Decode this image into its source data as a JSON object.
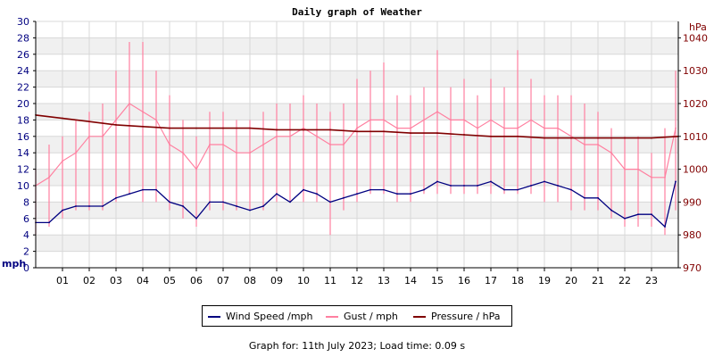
{
  "chart_data": {
    "type": "line",
    "title": "Daily graph of Weather",
    "left_axis": {
      "label": "mph",
      "ylim": [
        0,
        30
      ],
      "ticks": [
        0,
        2,
        4,
        6,
        8,
        10,
        12,
        14,
        16,
        18,
        20,
        22,
        24,
        26,
        28,
        30
      ]
    },
    "right_axis": {
      "label": "hPa",
      "ylim": [
        970,
        1045
      ],
      "ticks": [
        970,
        980,
        990,
        1000,
        1010,
        1020,
        1030,
        1040
      ]
    },
    "x_axis": {
      "xlim": [
        0,
        24
      ],
      "tick_labels": [
        "01",
        "02",
        "03",
        "04",
        "05",
        "06",
        "07",
        "08",
        "09",
        "10",
        "11",
        "12",
        "13",
        "14",
        "15",
        "16",
        "17",
        "18",
        "19",
        "20",
        "21",
        "22",
        "23"
      ]
    },
    "grid": true,
    "series": [
      {
        "name": "Wind Speed /mph",
        "axis": "left",
        "color": "#000080",
        "x": [
          0,
          0.5,
          1,
          1.5,
          2,
          2.5,
          3,
          3.5,
          4,
          4.5,
          5,
          5.5,
          6,
          6.5,
          7,
          7.5,
          8,
          8.5,
          9,
          9.5,
          10,
          10.5,
          11,
          11.5,
          12,
          12.5,
          13,
          13.5,
          14,
          14.5,
          15,
          15.5,
          16,
          16.5,
          17,
          17.5,
          18,
          18.5,
          19,
          19.5,
          20,
          20.5,
          21,
          21.5,
          22,
          22.5,
          23,
          23.5,
          23.9
        ],
        "values": [
          5.5,
          5.5,
          7,
          7.5,
          7.5,
          7.5,
          8.5,
          9,
          9.5,
          9.5,
          8,
          7.5,
          6,
          8,
          8,
          7.5,
          7,
          7.5,
          9,
          8,
          9.5,
          9,
          8,
          8.5,
          9,
          9.5,
          9.5,
          9,
          9,
          9.5,
          10.5,
          10,
          10,
          10,
          10.5,
          9.5,
          9.5,
          10,
          10.5,
          10,
          9.5,
          8.5,
          8.5,
          7,
          6,
          6.5,
          6.5,
          5,
          10.5
        ]
      },
      {
        "name": "Gust / mph",
        "axis": "left",
        "color": "#ff80a0",
        "x": [
          0,
          0.5,
          1,
          1.5,
          2,
          2.5,
          3,
          3.5,
          4,
          4.5,
          5,
          5.5,
          6,
          6.5,
          7,
          7.5,
          8,
          8.5,
          9,
          9.5,
          10,
          10.5,
          11,
          11.5,
          12,
          12.5,
          13,
          13.5,
          14,
          14.5,
          15,
          15.5,
          16,
          16.5,
          17,
          17.5,
          18,
          18.5,
          19,
          19.5,
          20,
          20.5,
          21,
          21.5,
          22,
          22.5,
          23,
          23.5,
          23.9
        ],
        "values": [
          10,
          11,
          13,
          14,
          16,
          16,
          18,
          20,
          19,
          18,
          15,
          14,
          12,
          15,
          15,
          14,
          14,
          15,
          16,
          16,
          17,
          16,
          15,
          15,
          17,
          18,
          18,
          17,
          17,
          18,
          19,
          18,
          18,
          17,
          18,
          17,
          17,
          18,
          17,
          17,
          16,
          15,
          15,
          14,
          12,
          12,
          11,
          11,
          17
        ],
        "min_values": [
          4,
          5,
          6,
          7,
          7,
          7,
          8,
          9,
          8,
          8,
          7,
          6,
          5,
          7,
          7,
          7,
          7,
          7,
          8,
          8,
          8,
          8,
          4,
          7,
          8,
          9,
          9,
          8,
          8,
          9,
          9,
          9,
          9,
          9,
          9,
          9,
          9,
          9,
          8,
          8,
          7,
          7,
          7,
          6,
          5,
          5,
          5,
          4,
          7
        ],
        "max_values": [
          12,
          15,
          16,
          18,
          19,
          20,
          24,
          27.5,
          27.5,
          24,
          21,
          18,
          16,
          19,
          19,
          18,
          18,
          19,
          20,
          20,
          21,
          20,
          19,
          20,
          23,
          24,
          25,
          21,
          21,
          22,
          26.5,
          22,
          23,
          21,
          23,
          22,
          26.5,
          23,
          21,
          21,
          21,
          20,
          19,
          17,
          16,
          16,
          14,
          17,
          24
        ]
      },
      {
        "name": "Pressure / hPa",
        "axis": "right",
        "color": "#800000",
        "x": [
          0,
          1,
          2,
          3,
          4,
          5,
          6,
          7,
          8,
          9,
          10,
          11,
          12,
          13,
          14,
          15,
          16,
          17,
          18,
          19,
          20,
          21,
          22,
          23,
          24
        ],
        "values": [
          1016.5,
          1015.5,
          1014.5,
          1013.5,
          1013,
          1012.5,
          1012.5,
          1012.5,
          1012.5,
          1012,
          1012,
          1012,
          1011.5,
          1011.5,
          1011,
          1011,
          1010.5,
          1010,
          1010,
          1009.5,
          1009.5,
          1009.5,
          1009.5,
          1009.5,
          1010
        ]
      }
    ]
  },
  "legend": {
    "items": [
      {
        "label": "Wind Speed /mph",
        "color": "#000080"
      },
      {
        "label": "Gust / mph",
        "color": "#ff80a0"
      },
      {
        "label": "Pressure / hPa",
        "color": "#800000"
      }
    ]
  },
  "footer": {
    "text": "Graph for: 11th July 2023; Load time: 0.09 s"
  },
  "colors": {
    "left_axis": "#000080",
    "right_axis": "#800000",
    "band": "#f0f0f0",
    "grid": "#d8d8d8"
  }
}
